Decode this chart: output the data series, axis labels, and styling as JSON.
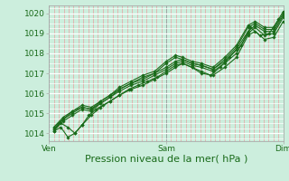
{
  "bg_color": "#cceedd",
  "plot_bg_color": "#cceedd",
  "grid_white_color": "#ffffff",
  "grid_pink_color": "#e8a0a0",
  "line_color": "#1a6b1a",
  "marker_color": "#1a6b1a",
  "text_color": "#1a6b1a",
  "spine_color": "#aaaaaa",
  "ylim": [
    1013.6,
    1020.4
  ],
  "yticks": [
    1014,
    1015,
    1016,
    1017,
    1018,
    1019,
    1020
  ],
  "xtick_positions": [
    0.0,
    0.5,
    1.0
  ],
  "xtick_labels": [
    "Ven",
    "Sam",
    "Dim"
  ],
  "xlabel": "Pression niveau de la mer( hPa )",
  "xlabel_fontsize": 8,
  "tick_fontsize": 6.5,
  "series": [
    {
      "x": [
        0.02,
        0.05,
        0.08,
        0.11,
        0.14,
        0.17,
        0.2,
        0.23,
        0.26,
        0.3,
        0.34,
        0.38,
        0.42,
        0.46,
        0.5,
        0.54,
        0.57,
        0.61,
        0.65,
        0.69,
        0.73,
        0.77,
        0.82,
        0.86,
        0.9,
        0.94,
        0.98
      ],
      "y": [
        1014.1,
        1014.5,
        1014.3,
        1014.0,
        1014.4,
        1014.9,
        1015.2,
        1015.4,
        1015.6,
        1015.9,
        1016.2,
        1016.4,
        1016.6,
        1016.8,
        1017.1,
        1017.4,
        1017.5,
        1017.3,
        1017.1,
        1016.9,
        1017.3,
        1017.8,
        1018.4,
        1019.3,
        1018.9,
        1019.0,
        1019.7
      ]
    },
    {
      "x": [
        0.02,
        0.06,
        0.1,
        0.14,
        0.18,
        0.22,
        0.26,
        0.3,
        0.35,
        0.4,
        0.45,
        0.5,
        0.54,
        0.57,
        0.61,
        0.65,
        0.7,
        0.75,
        0.8,
        0.85,
        0.88,
        0.92,
        0.96,
        1.0
      ],
      "y": [
        1014.2,
        1014.7,
        1015.0,
        1015.3,
        1015.2,
        1015.5,
        1015.8,
        1016.1,
        1016.4,
        1016.6,
        1016.9,
        1017.2,
        1017.5,
        1017.6,
        1017.4,
        1017.3,
        1017.1,
        1017.5,
        1018.0,
        1019.0,
        1019.3,
        1018.9,
        1019.0,
        1019.8
      ]
    },
    {
      "x": [
        0.02,
        0.06,
        0.1,
        0.14,
        0.18,
        0.22,
        0.26,
        0.3,
        0.35,
        0.4,
        0.45,
        0.5,
        0.54,
        0.57,
        0.61,
        0.65,
        0.7,
        0.75,
        0.8,
        0.85,
        0.88,
        0.92,
        0.96,
        1.0
      ],
      "y": [
        1014.3,
        1014.8,
        1015.1,
        1015.4,
        1015.3,
        1015.6,
        1015.9,
        1016.2,
        1016.5,
        1016.7,
        1017.0,
        1017.3,
        1017.6,
        1017.7,
        1017.5,
        1017.4,
        1017.2,
        1017.6,
        1018.2,
        1019.1,
        1019.4,
        1019.1,
        1019.1,
        1019.9
      ]
    },
    {
      "x": [
        0.02,
        0.06,
        0.1,
        0.14,
        0.18,
        0.22,
        0.26,
        0.3,
        0.35,
        0.4,
        0.45,
        0.5,
        0.54,
        0.57,
        0.61,
        0.65,
        0.7,
        0.75,
        0.8,
        0.85,
        0.88,
        0.92,
        0.96,
        1.0
      ],
      "y": [
        1014.2,
        1014.6,
        1014.9,
        1015.2,
        1015.1,
        1015.5,
        1015.8,
        1016.2,
        1016.5,
        1016.8,
        1017.0,
        1017.5,
        1017.8,
        1017.7,
        1017.5,
        1017.4,
        1017.2,
        1017.7,
        1018.3,
        1019.3,
        1019.5,
        1019.2,
        1019.2,
        1020.0
      ]
    },
    {
      "x": [
        0.02,
        0.06,
        0.1,
        0.14,
        0.18,
        0.22,
        0.26,
        0.3,
        0.35,
        0.4,
        0.45,
        0.5,
        0.54,
        0.57,
        0.61,
        0.65,
        0.7,
        0.75,
        0.8,
        0.85,
        0.88,
        0.92,
        0.96,
        1.0
      ],
      "y": [
        1014.3,
        1014.7,
        1015.1,
        1015.3,
        1015.2,
        1015.6,
        1015.9,
        1016.3,
        1016.6,
        1016.9,
        1017.1,
        1017.6,
        1017.9,
        1017.8,
        1017.6,
        1017.5,
        1017.3,
        1017.8,
        1018.4,
        1019.4,
        1019.6,
        1019.3,
        1019.3,
        1020.1
      ]
    },
    {
      "x": [
        0.02,
        0.05,
        0.08,
        0.11,
        0.14,
        0.18,
        0.22,
        0.26,
        0.3,
        0.35,
        0.4,
        0.45,
        0.5,
        0.54,
        0.57,
        0.61,
        0.65,
        0.7,
        0.75,
        0.8,
        0.85,
        0.88,
        0.92,
        0.96,
        1.0
      ],
      "y": [
        1014.1,
        1014.3,
        1013.8,
        1014.0,
        1014.4,
        1014.9,
        1015.3,
        1015.6,
        1015.9,
        1016.2,
        1016.4,
        1016.7,
        1017.0,
        1017.3,
        1017.5,
        1017.3,
        1017.0,
        1016.9,
        1017.3,
        1017.8,
        1018.9,
        1019.1,
        1018.7,
        1018.8,
        1019.6
      ]
    }
  ]
}
